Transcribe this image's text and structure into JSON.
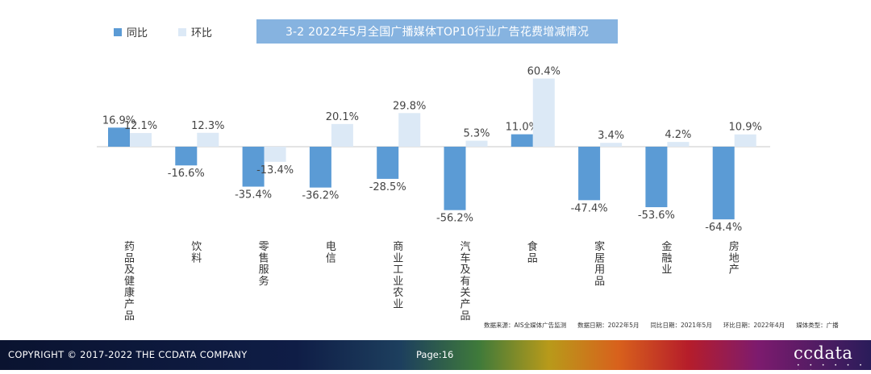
{
  "legend": {
    "yoy_label": "同比",
    "mom_label": "环比",
    "yoy_color": "#5b9bd5",
    "mom_color": "#dce9f6"
  },
  "chart_data": {
    "type": "bar",
    "title": "3-2 2022年5月全国广播媒体TOP10行业广告花费增减情况",
    "categories": [
      "药品及健康产品",
      "饮料",
      "零售服务",
      "电信",
      "商业工业农业",
      "汽车及有关产品",
      "食品",
      "家居用品",
      "金融业",
      "房地产"
    ],
    "series": [
      {
        "name": "同比",
        "values": [
          16.9,
          -16.6,
          -35.4,
          -36.2,
          -28.5,
          -56.2,
          11.0,
          -47.4,
          -53.6,
          -64.4
        ]
      },
      {
        "name": "环比",
        "values": [
          12.1,
          12.3,
          -13.4,
          20.1,
          29.8,
          5.3,
          60.4,
          3.4,
          4.2,
          10.9
        ]
      }
    ],
    "data_labels": {
      "yoy": [
        "16.9%",
        "-16.6%",
        "-35.4%",
        "-36.2%",
        "-28.5%",
        "-56.2%",
        "11.0%",
        "-47.4%",
        "-53.6%",
        "-64.4%"
      ],
      "mom": [
        "12.1%",
        "12.3%",
        "-13.4%",
        "20.1%",
        "29.8%",
        "5.3%",
        "60.4%",
        "3.4%",
        "4.2%",
        "10.9%"
      ]
    },
    "ylim": [
      -70,
      65
    ],
    "xlabel": "",
    "ylabel": "",
    "grid": false,
    "legend_position": "top-left"
  },
  "source": {
    "data_source": "数据来源：AIS全媒体广告监测",
    "data_date": "数据日期：2022年5月",
    "yoy_date": "同比日期：2021年5月",
    "mom_date": "环比日期：2022年4月",
    "media_type": "媒体类型：广播"
  },
  "footer": {
    "copyright": "COPYRIGHT © 2017-2022 THE CCDATA COMPANY",
    "page": "Page:16",
    "logo": "ccdata",
    "logo_dots": "• • • • • • • •"
  }
}
